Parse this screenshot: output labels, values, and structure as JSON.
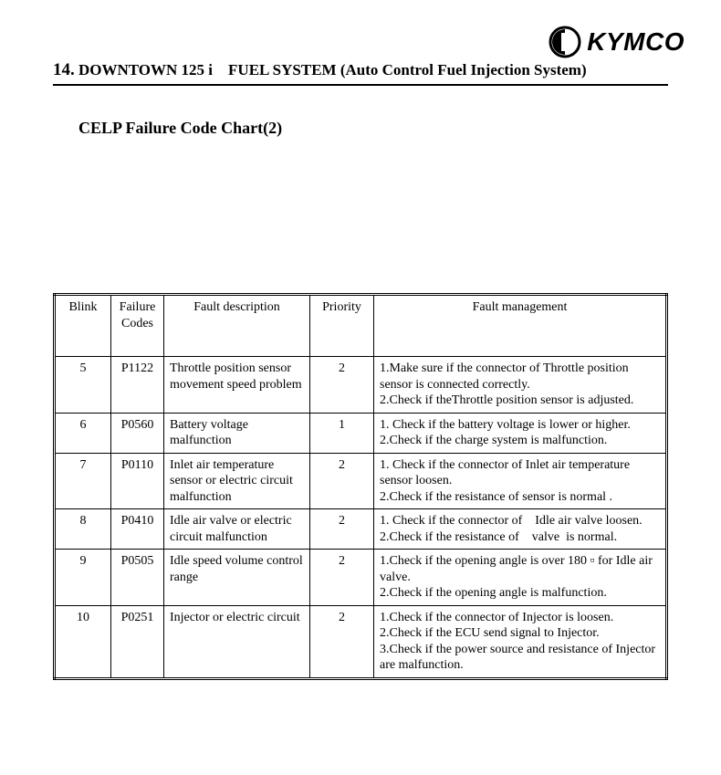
{
  "brand": "KYMCO",
  "chapter_number": "14.",
  "chapter_title": "DOWNTOWN 125 i FUEL SYSTEM (Auto Control Fuel Injection System)",
  "section_title": "CELP Failure Code Chart(2)",
  "table": {
    "headers": {
      "blink": "Blink",
      "code": "Failure Codes",
      "desc": "Fault description",
      "priority": "Priority",
      "mgmt": "Fault management"
    },
    "rows": [
      {
        "blink": "5",
        "code": "P1122",
        "desc": "Throttle position sensor movement speed problem",
        "priority": "2",
        "mgmt": "1.Make sure if the connector of Throttle position sensor is connected correctly.\n2.Check if theThrottle position sensor is adjusted."
      },
      {
        "blink": "6",
        "code": "P0560",
        "desc": "Battery voltage malfunction",
        "priority": "1",
        "mgmt": "1. Check if the battery voltage is lower or higher.\n2.Check if the charge system is malfunction."
      },
      {
        "blink": "7",
        "code": "P0110",
        "desc": "Inlet air temperature sensor or electric circuit malfunction",
        "priority": "2",
        "mgmt": "1. Check if the connector of Inlet air temperature sensor loosen.\n2.Check if the resistance of sensor is normal ."
      },
      {
        "blink": "8",
        "code": "P0410",
        "desc": "Idle air valve or electric circuit malfunction",
        "priority": "2",
        "mgmt": "1. Check if the connector of Idle air valve loosen.\n2.Check if the resistance of valve  is normal."
      },
      {
        "blink": "9",
        "code": "P0505",
        "desc": "Idle speed volume control range",
        "priority": "2",
        "mgmt": "1.Check if the opening angle is over 180 ▫ for Idle air valve.\n2.Check if the opening angle is malfunction."
      },
      {
        "blink": "10",
        "code": "P0251",
        "desc": "Injector or electric circuit",
        "priority": "2",
        "mgmt": "1.Check if the connector of Injector is loosen.\n2.Check if the ECU send signal to Injector.\n3.Check if the power source and resistance of Injector are malfunction."
      }
    ]
  }
}
